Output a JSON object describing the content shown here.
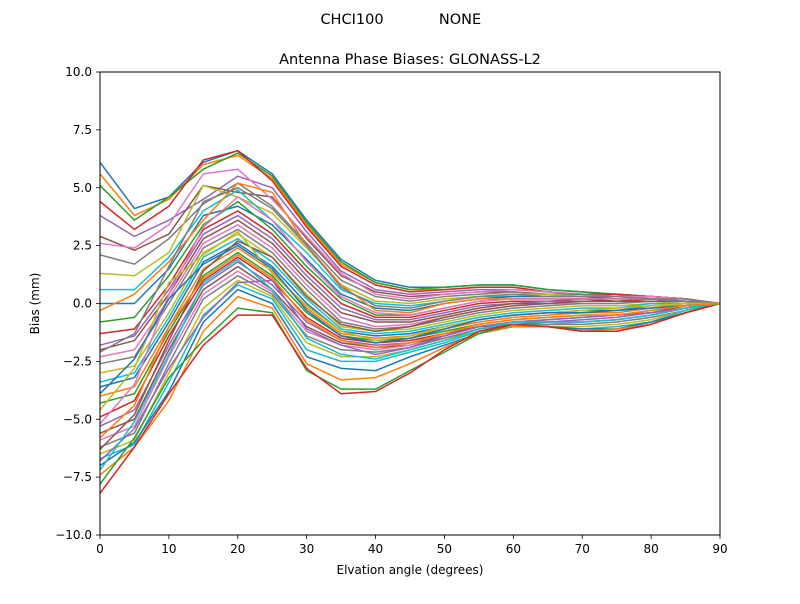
{
  "figure": {
    "suptitle_left": "CHCI100",
    "suptitle_right": "NONE"
  },
  "chart_data": {
    "type": "line",
    "title": "Antenna Phase Biases: GLONASS-L2",
    "xlabel": "Elvation angle (degrees)",
    "ylabel": "Bias (mm)",
    "xlim": [
      0,
      90
    ],
    "ylim": [
      -10,
      10
    ],
    "xticks": [
      0,
      10,
      20,
      30,
      40,
      50,
      60,
      70,
      80,
      90
    ],
    "yticks": [
      -10.0,
      -7.5,
      -5.0,
      -2.5,
      0.0,
      2.5,
      5.0,
      7.5,
      10.0
    ],
    "ytick_labels": [
      "−10.0",
      "−7.5",
      "−5.0",
      "−2.5",
      "0.0",
      "2.5",
      "5.0",
      "7.5",
      "10.0"
    ],
    "grid": false,
    "legend": false,
    "color_cycle": [
      "#1f77b4",
      "#ff7f0e",
      "#2ca02c",
      "#d62728",
      "#9467bd",
      "#8c564b",
      "#e377c2",
      "#7f7f7f",
      "#bcbd22",
      "#17becf"
    ],
    "x": [
      0,
      5,
      10,
      15,
      20,
      25,
      30,
      35,
      40,
      45,
      50,
      55,
      60,
      65,
      70,
      75,
      80,
      85,
      90
    ],
    "series": [
      {
        "values": [
          6.1,
          4.1,
          4.6,
          6.1,
          6.6,
          5.6,
          3.6,
          1.9,
          1.0,
          0.7,
          0.7,
          0.8,
          0.8,
          0.6,
          0.5,
          0.4,
          0.3,
          0.2,
          0.0
        ]
      },
      {
        "values": [
          5.6,
          3.8,
          4.5,
          6.0,
          6.4,
          5.4,
          3.4,
          1.7,
          0.9,
          0.6,
          0.6,
          0.7,
          0.7,
          0.5,
          0.4,
          0.4,
          0.3,
          0.2,
          0.0
        ]
      },
      {
        "values": [
          5.1,
          3.6,
          4.6,
          5.8,
          6.5,
          5.5,
          3.5,
          1.8,
          0.9,
          0.6,
          0.7,
          0.8,
          0.8,
          0.6,
          0.5,
          0.4,
          0.3,
          0.2,
          0.0
        ]
      },
      {
        "values": [
          4.4,
          3.2,
          4.2,
          6.2,
          6.6,
          5.3,
          3.3,
          1.6,
          0.8,
          0.5,
          0.6,
          0.7,
          0.7,
          0.5,
          0.4,
          0.4,
          0.3,
          0.2,
          0.0
        ]
      },
      {
        "values": [
          3.8,
          2.9,
          3.6,
          4.5,
          5.5,
          5.0,
          3.1,
          1.4,
          0.6,
          0.4,
          0.5,
          0.6,
          0.6,
          0.5,
          0.4,
          0.3,
          0.3,
          0.2,
          0.0
        ]
      },
      {
        "values": [
          2.9,
          2.3,
          3.0,
          5.1,
          4.8,
          4.6,
          2.8,
          1.2,
          0.5,
          0.3,
          0.4,
          0.5,
          0.5,
          0.4,
          0.4,
          0.3,
          0.3,
          0.2,
          0.0
        ]
      },
      {
        "values": [
          2.6,
          2.4,
          3.4,
          5.6,
          5.8,
          4.5,
          2.9,
          1.3,
          0.4,
          0.2,
          0.4,
          0.5,
          0.6,
          0.5,
          0.4,
          0.3,
          0.3,
          0.2,
          0.0
        ]
      },
      {
        "values": [
          2.1,
          1.7,
          2.8,
          4.3,
          5.2,
          4.2,
          2.6,
          1.0,
          0.3,
          0.1,
          0.3,
          0.4,
          0.5,
          0.4,
          0.4,
          0.3,
          0.2,
          0.2,
          0.0
        ]
      },
      {
        "values": [
          1.3,
          1.2,
          2.2,
          5.1,
          4.6,
          3.9,
          2.4,
          0.8,
          0.1,
          0.0,
          0.2,
          0.3,
          0.4,
          0.4,
          0.3,
          0.3,
          0.2,
          0.1,
          0.0
        ]
      },
      {
        "values": [
          0.6,
          0.6,
          2.0,
          4.0,
          4.9,
          3.6,
          2.2,
          0.6,
          0.0,
          -0.1,
          0.1,
          0.3,
          0.3,
          0.3,
          0.3,
          0.2,
          0.2,
          0.1,
          0.0
        ]
      },
      {
        "values": [
          0.0,
          0.0,
          1.5,
          3.8,
          4.2,
          3.4,
          1.9,
          0.4,
          -0.2,
          -0.3,
          0.0,
          0.2,
          0.3,
          0.3,
          0.3,
          0.2,
          0.2,
          0.1,
          0.0
        ]
      },
      {
        "values": [
          -0.3,
          0.4,
          1.8,
          3.6,
          5.2,
          4.8,
          2.5,
          0.8,
          -0.3,
          -0.4,
          0.0,
          0.2,
          0.2,
          0.2,
          0.2,
          0.2,
          0.2,
          0.1,
          0.0
        ]
      },
      {
        "values": [
          -0.8,
          -0.6,
          1.2,
          3.4,
          4.4,
          3.2,
          1.6,
          0.2,
          -0.5,
          -0.5,
          -0.2,
          0.1,
          0.2,
          0.2,
          0.2,
          0.2,
          0.2,
          0.1,
          0.0
        ]
      },
      {
        "values": [
          -1.3,
          -1.1,
          0.8,
          3.2,
          4.0,
          3.0,
          1.4,
          0.0,
          -0.6,
          -0.6,
          -0.3,
          0.0,
          0.1,
          0.1,
          0.2,
          0.1,
          0.2,
          0.1,
          0.0
        ]
      },
      {
        "values": [
          -1.8,
          -1.4,
          0.6,
          3.0,
          3.8,
          2.8,
          1.2,
          -0.2,
          -0.7,
          -0.7,
          -0.4,
          -0.1,
          0.0,
          0.1,
          0.1,
          0.1,
          0.1,
          0.1,
          0.0
        ]
      },
      {
        "values": [
          -2.0,
          -1.6,
          0.4,
          2.8,
          3.6,
          2.6,
          1.0,
          -0.4,
          -0.8,
          -0.8,
          -0.5,
          -0.2,
          0.0,
          0.0,
          0.1,
          0.1,
          0.1,
          0.1,
          0.0
        ]
      },
      {
        "values": [
          -2.3,
          -2.0,
          0.2,
          2.6,
          3.4,
          2.4,
          0.8,
          -0.6,
          -1.0,
          -0.9,
          -0.6,
          -0.3,
          -0.1,
          0.0,
          0.0,
          0.0,
          0.1,
          0.1,
          0.0
        ]
      },
      {
        "values": [
          -2.6,
          -2.3,
          0.0,
          2.4,
          3.2,
          2.2,
          0.6,
          -0.8,
          -1.1,
          -1.0,
          -0.7,
          -0.4,
          -0.2,
          -0.1,
          0.0,
          0.0,
          0.1,
          0.1,
          0.0
        ]
      },
      {
        "values": [
          -3.0,
          -2.7,
          -0.4,
          2.2,
          3.0,
          2.0,
          0.4,
          -1.0,
          -1.2,
          -1.1,
          -0.8,
          -0.5,
          -0.3,
          -0.2,
          -0.1,
          -0.1,
          0.0,
          0.1,
          0.0
        ]
      },
      {
        "values": [
          -3.4,
          -3.0,
          -0.6,
          2.0,
          2.8,
          1.8,
          0.2,
          -1.1,
          -1.3,
          -1.2,
          -0.9,
          -0.6,
          -0.4,
          -0.3,
          -0.2,
          -0.2,
          0.0,
          0.0,
          0.0
        ]
      },
      {
        "values": [
          -3.6,
          -3.2,
          -0.8,
          1.8,
          2.6,
          1.6,
          0.0,
          -1.2,
          -1.4,
          -1.3,
          -1.0,
          -0.7,
          -0.5,
          -0.4,
          -0.3,
          -0.3,
          -0.1,
          0.0,
          0.0
        ]
      },
      {
        "values": [
          -4.0,
          -3.6,
          -1.0,
          1.5,
          2.4,
          1.4,
          -0.2,
          -1.3,
          -1.5,
          -1.4,
          -1.1,
          -0.8,
          -0.6,
          -0.5,
          -0.4,
          -0.4,
          -0.2,
          0.0,
          0.0
        ]
      },
      {
        "values": [
          -4.3,
          -3.9,
          -1.2,
          1.2,
          2.2,
          1.2,
          -0.4,
          -1.4,
          -1.6,
          -1.5,
          -1.2,
          -0.9,
          -0.7,
          -0.6,
          -0.5,
          -0.5,
          -0.3,
          -0.1,
          0.0
        ]
      },
      {
        "values": [
          -4.9,
          -4.2,
          -1.4,
          1.0,
          2.0,
          1.0,
          -0.6,
          -1.5,
          -1.7,
          -1.6,
          -1.3,
          -1.0,
          -0.8,
          -0.7,
          -0.6,
          -0.5,
          -0.4,
          -0.1,
          0.0
        ]
      },
      {
        "values": [
          -5.3,
          -4.6,
          -1.8,
          0.8,
          1.8,
          0.8,
          -0.8,
          -1.6,
          -1.8,
          -1.7,
          -1.4,
          -1.0,
          -0.8,
          -0.8,
          -0.7,
          -0.6,
          -0.4,
          -0.2,
          0.0
        ]
      },
      {
        "values": [
          -5.6,
          -5.0,
          -2.0,
          0.6,
          1.6,
          0.6,
          -1.0,
          -1.7,
          -1.9,
          -1.8,
          -1.4,
          -1.0,
          -0.9,
          -0.8,
          -0.8,
          -0.7,
          -0.5,
          -0.2,
          0.0
        ]
      },
      {
        "values": [
          -5.9,
          -5.3,
          -2.3,
          0.4,
          1.4,
          0.5,
          -1.2,
          -1.8,
          -2.0,
          -1.8,
          -1.5,
          -1.1,
          -0.9,
          -0.9,
          -0.8,
          -0.7,
          -0.5,
          -0.2,
          0.0
        ]
      },
      {
        "values": [
          -6.2,
          -5.6,
          -2.6,
          0.2,
          1.2,
          0.4,
          -1.4,
          -2.0,
          -2.1,
          -1.9,
          -1.5,
          -1.1,
          -0.9,
          -0.9,
          -0.9,
          -0.8,
          -0.6,
          -0.3,
          0.0
        ]
      },
      {
        "values": [
          -6.5,
          -5.9,
          -3.0,
          -0.2,
          1.0,
          0.3,
          -1.7,
          -2.3,
          -2.3,
          -2.0,
          -1.6,
          -1.2,
          -1.0,
          -1.0,
          -1.0,
          -0.9,
          -0.7,
          -0.3,
          0.0
        ]
      },
      {
        "values": [
          -6.7,
          -6.1,
          -3.4,
          -0.5,
          0.8,
          0.2,
          -2.0,
          -2.5,
          -2.5,
          -2.1,
          -1.7,
          -1.2,
          -1.0,
          -1.0,
          -1.1,
          -1.0,
          -0.8,
          -0.3,
          0.0
        ]
      },
      {
        "values": [
          -7.0,
          -6.0,
          -3.8,
          -0.8,
          0.6,
          0.0,
          -2.3,
          -2.8,
          -2.9,
          -2.3,
          -1.8,
          -1.3,
          -1.0,
          -1.0,
          -1.1,
          -1.1,
          -0.8,
          -0.4,
          0.0
        ]
      },
      {
        "values": [
          -7.4,
          -6.2,
          -4.2,
          -1.2,
          0.3,
          -0.2,
          -2.6,
          -3.3,
          -3.2,
          -2.6,
          -1.9,
          -1.3,
          -1.0,
          -1.0,
          -1.2,
          -1.1,
          -0.9,
          -0.4,
          0.0
        ]
      },
      {
        "values": [
          -7.8,
          -5.8,
          -3.2,
          -1.6,
          -0.2,
          -0.4,
          -2.9,
          -3.7,
          -3.7,
          -2.9,
          -2.1,
          -1.3,
          -0.9,
          -1.0,
          -1.2,
          -1.2,
          -0.9,
          -0.4,
          0.0
        ]
      },
      {
        "values": [
          -8.2,
          -6.2,
          -3.9,
          -1.8,
          -0.5,
          -0.5,
          -2.8,
          -3.9,
          -3.8,
          -3.0,
          -2.0,
          -1.2,
          -0.9,
          -1.0,
          -1.2,
          -1.2,
          -0.9,
          -0.4,
          0.0
        ]
      },
      {
        "values": [
          -6.8,
          -5.4,
          -2.8,
          -0.6,
          0.9,
          1.0,
          -1.1,
          -1.8,
          -2.2,
          -1.9,
          -1.4,
          -1.0,
          -0.8,
          -0.7,
          -0.6,
          -0.5,
          -0.4,
          -0.2,
          0.0
        ]
      },
      {
        "values": [
          -6.3,
          -4.8,
          -1.6,
          1.4,
          2.7,
          2.0,
          0.3,
          -0.9,
          -1.2,
          -1.0,
          -0.6,
          -0.3,
          -0.1,
          0.0,
          0.1,
          0.1,
          0.1,
          0.1,
          0.0
        ]
      },
      {
        "values": [
          -5.2,
          -3.5,
          0.4,
          3.3,
          4.6,
          3.6,
          1.8,
          0.3,
          -0.4,
          -0.5,
          -0.2,
          0.1,
          0.2,
          0.2,
          0.2,
          0.2,
          0.2,
          0.1,
          0.0
        ]
      },
      {
        "values": [
          -2.1,
          -1.3,
          1.6,
          4.4,
          5.0,
          4.1,
          2.5,
          0.7,
          -0.1,
          -0.2,
          0.1,
          0.3,
          0.4,
          0.3,
          0.3,
          0.3,
          0.2,
          0.1,
          0.0
        ]
      },
      {
        "values": [
          -4.6,
          -2.8,
          0.9,
          2.1,
          3.1,
          1.3,
          -0.1,
          -1.2,
          -1.6,
          -1.4,
          -1.0,
          -0.7,
          -0.5,
          -0.4,
          -0.3,
          -0.2,
          -0.1,
          0.0,
          0.0
        ]
      },
      {
        "values": [
          -7.2,
          -5.1,
          -2.2,
          0.9,
          1.9,
          0.6,
          -1.5,
          -2.2,
          -2.4,
          -2.0,
          -1.6,
          -1.1,
          -0.8,
          -0.8,
          -0.8,
          -0.7,
          -0.5,
          -0.2,
          0.0
        ]
      },
      {
        "values": [
          -3.9,
          -2.4,
          0.2,
          1.7,
          2.5,
          1.5,
          -0.3,
          -1.4,
          -1.7,
          -1.5,
          -1.1,
          -0.7,
          -0.5,
          -0.4,
          -0.4,
          -0.3,
          -0.2,
          -0.1,
          0.0
        ]
      },
      {
        "values": [
          -5.8,
          -4.4,
          -1.0,
          1.1,
          2.1,
          1.1,
          -0.7,
          -1.6,
          -1.9,
          -1.7,
          -1.3,
          -0.9,
          -0.7,
          -0.6,
          -0.5,
          -0.5,
          -0.3,
          -0.1,
          0.0
        ]
      }
    ]
  }
}
